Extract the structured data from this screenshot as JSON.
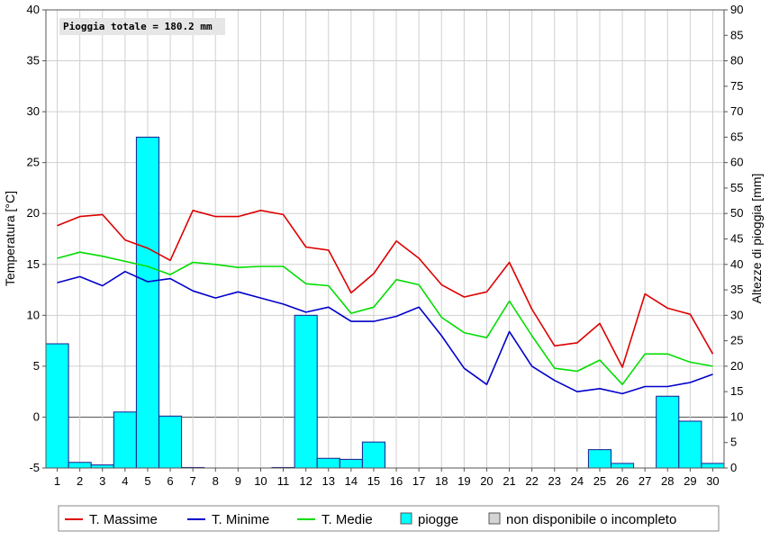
{
  "chart_data": {
    "type": "bar+line",
    "annotation": "Pioggia totale = 180.2 mm",
    "ylabel_left": "Temperatura [°C]",
    "ylabel_right": "Altezze di pioggia [mm]",
    "ylim_left": [
      -5,
      40
    ],
    "ylim_right": [
      0,
      90
    ],
    "yticks_left": [
      -5,
      0,
      5,
      10,
      15,
      20,
      25,
      30,
      35,
      40
    ],
    "yticks_right": [
      0,
      5,
      10,
      15,
      20,
      25,
      30,
      35,
      40,
      45,
      50,
      55,
      60,
      65,
      70,
      75,
      80,
      85,
      90
    ],
    "categories": [
      "1",
      "2",
      "3",
      "4",
      "5",
      "6",
      "7",
      "8",
      "9",
      "10",
      "11",
      "12",
      "13",
      "14",
      "15",
      "16",
      "17",
      "18",
      "19",
      "20",
      "21",
      "22",
      "23",
      "24",
      "25",
      "26",
      "27",
      "28",
      "29",
      "30"
    ],
    "grid": true,
    "legend_position": "bottom",
    "bars": {
      "name": "piogge",
      "axis": "right",
      "color": "#00ffff",
      "values": [
        24.4,
        1.1,
        0.6,
        11.0,
        65.0,
        10.2,
        0.1,
        0,
        0,
        0,
        0.1,
        30.0,
        1.9,
        1.7,
        5.1,
        0,
        0,
        0,
        0,
        0,
        0,
        0,
        0,
        0,
        3.6,
        0.9,
        0,
        14.1,
        9.2,
        0.9
      ]
    },
    "series": [
      {
        "name": "T. Massime",
        "color": "#dd0000",
        "values": [
          18.8,
          19.7,
          19.9,
          17.4,
          16.6,
          15.4,
          20.3,
          19.7,
          19.7,
          20.3,
          19.9,
          16.7,
          16.4,
          12.2,
          14.1,
          17.3,
          15.6,
          13.0,
          11.8,
          12.3,
          15.2,
          10.6,
          7.0,
          7.3,
          9.2,
          4.9,
          12.1,
          10.7,
          10.1,
          6.2
        ]
      },
      {
        "name": "T. Minime",
        "color": "#0000cc",
        "values": [
          13.2,
          13.8,
          12.9,
          14.3,
          13.3,
          13.6,
          12.4,
          11.7,
          12.3,
          11.7,
          11.1,
          10.3,
          10.8,
          9.4,
          9.4,
          9.9,
          10.8,
          8.0,
          4.8,
          3.2,
          8.4,
          5.0,
          3.6,
          2.5,
          2.8,
          2.3,
          3.0,
          3.0,
          3.4,
          4.2
        ]
      },
      {
        "name": "T. Medie",
        "color": "#00dd00",
        "values": [
          15.6,
          16.2,
          15.8,
          15.3,
          14.8,
          14.0,
          15.2,
          15.0,
          14.7,
          14.8,
          14.8,
          13.1,
          12.9,
          10.2,
          10.8,
          13.5,
          13.0,
          9.8,
          8.3,
          7.8,
          11.4,
          8.0,
          4.8,
          4.5,
          5.6,
          3.2,
          6.2,
          6.2,
          5.4,
          5.0
        ]
      }
    ],
    "legend": [
      {
        "label": "T. Massime",
        "kind": "line",
        "color": "#dd0000"
      },
      {
        "label": "T. Minime",
        "kind": "line",
        "color": "#0000cc"
      },
      {
        "label": "T. Medie",
        "kind": "line",
        "color": "#00dd00"
      },
      {
        "label": "piogge",
        "kind": "box",
        "color": "#00ffff"
      },
      {
        "label": "non disponibile o incompleto",
        "kind": "box",
        "color": "#d4d4d4"
      }
    ]
  }
}
